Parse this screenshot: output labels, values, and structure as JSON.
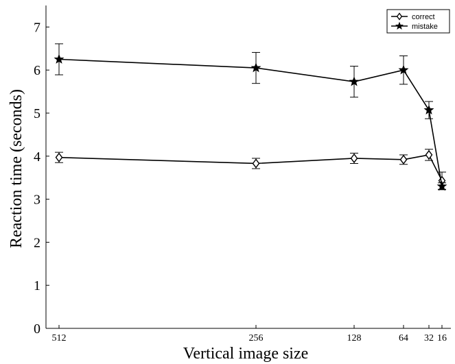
{
  "chart_data": {
    "type": "line",
    "title": "",
    "xlabel": "Vertical image size",
    "ylabel": "Reaction time (seconds)",
    "x_categories": [
      "512",
      "256",
      "128",
      "64",
      "32",
      "16"
    ],
    "x_scale": "log2 reversed",
    "x": [
      512,
      256,
      128,
      64,
      32,
      16
    ],
    "ylim": [
      0,
      7.5
    ],
    "y_ticks": [
      0,
      1,
      2,
      3,
      4,
      5,
      6,
      7
    ],
    "grid": false,
    "legend_position": "top-right",
    "series": [
      {
        "name": "correct",
        "marker": "diamond",
        "color": "#000000",
        "values": [
          3.97,
          3.83,
          3.95,
          3.92,
          4.03,
          3.43
        ],
        "err": [
          0.12,
          0.12,
          0.12,
          0.11,
          0.13,
          0.2
        ]
      },
      {
        "name": "mistake",
        "marker": "star",
        "color": "#000000",
        "values": [
          6.25,
          6.05,
          5.73,
          6.0,
          5.07,
          3.3
        ],
        "err": [
          0.36,
          0.36,
          0.36,
          0.33,
          0.2,
          0.08
        ]
      }
    ]
  }
}
